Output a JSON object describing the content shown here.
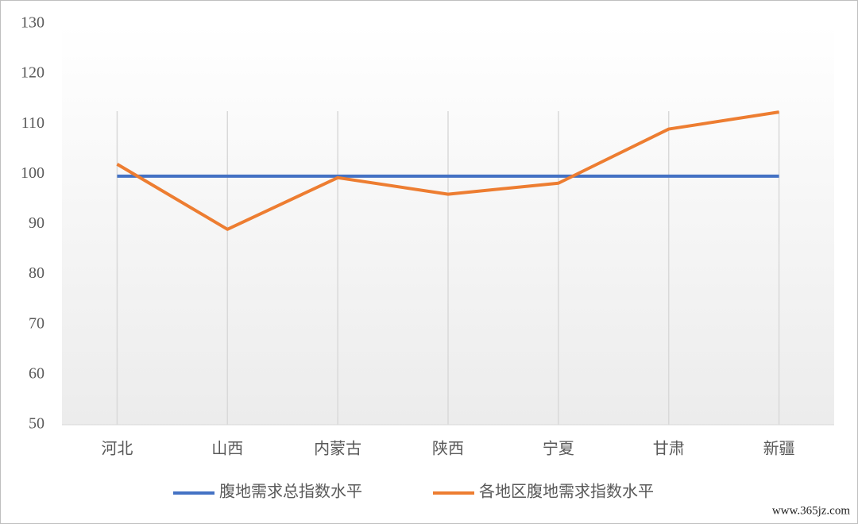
{
  "chart_data": {
    "type": "line",
    "categories": [
      "河北",
      "山西",
      "内蒙古",
      "陕西",
      "宁夏",
      "甘肃",
      "新疆"
    ],
    "series": [
      {
        "name": "腹地需求总指数水平",
        "color": "#4472c4",
        "values": [
          99.6,
          99.6,
          99.6,
          99.6,
          99.6,
          99.6,
          99.6
        ]
      },
      {
        "name": "各地区腹地需求指数水平",
        "color": "#ed7d31",
        "values": [
          102,
          89,
          99.3,
          96,
          98.2,
          109,
          112.4
        ]
      }
    ],
    "ylim": [
      50,
      130
    ],
    "yticks": [
      50,
      60,
      70,
      80,
      90,
      100,
      110,
      120,
      130
    ],
    "grid": true,
    "legend": "bottom",
    "watermark": "www.365jz.com"
  }
}
